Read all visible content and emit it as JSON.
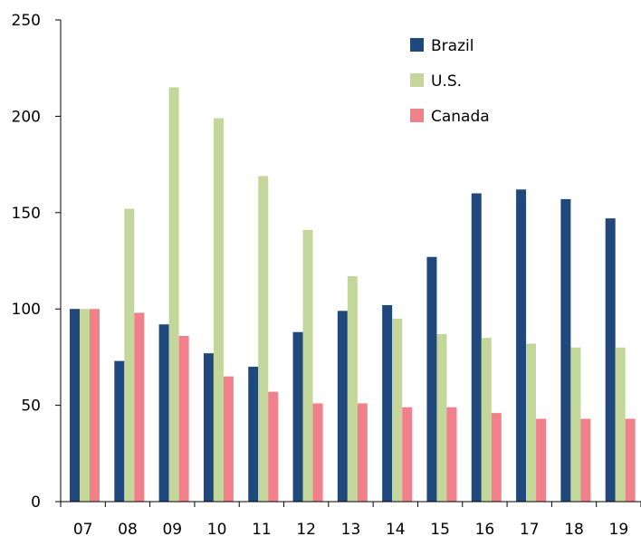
{
  "chart_data": {
    "type": "bar",
    "title": "",
    "xlabel": "",
    "ylabel": "",
    "ylim": [
      0,
      250
    ],
    "yticks": [
      0,
      50,
      100,
      150,
      200,
      250
    ],
    "grid": false,
    "legend_position": "top-right",
    "categories": [
      "07",
      "08",
      "09",
      "10",
      "11",
      "12",
      "13",
      "14",
      "15",
      "16",
      "17",
      "18",
      "19"
    ],
    "series": [
      {
        "name": "Brazil",
        "color": "#1f497d",
        "values": [
          100,
          73,
          92,
          77,
          70,
          88,
          99,
          102,
          127,
          160,
          162,
          157,
          147
        ]
      },
      {
        "name": "U.S.",
        "color": "#c4d79b",
        "values": [
          100,
          152,
          215,
          199,
          169,
          141,
          117,
          95,
          87,
          85,
          82,
          80,
          80
        ]
      },
      {
        "name": "Canada",
        "color": "#f2808a",
        "values": [
          100,
          98,
          86,
          65,
          57,
          51,
          51,
          49,
          49,
          46,
          43,
          43,
          43
        ]
      }
    ]
  }
}
